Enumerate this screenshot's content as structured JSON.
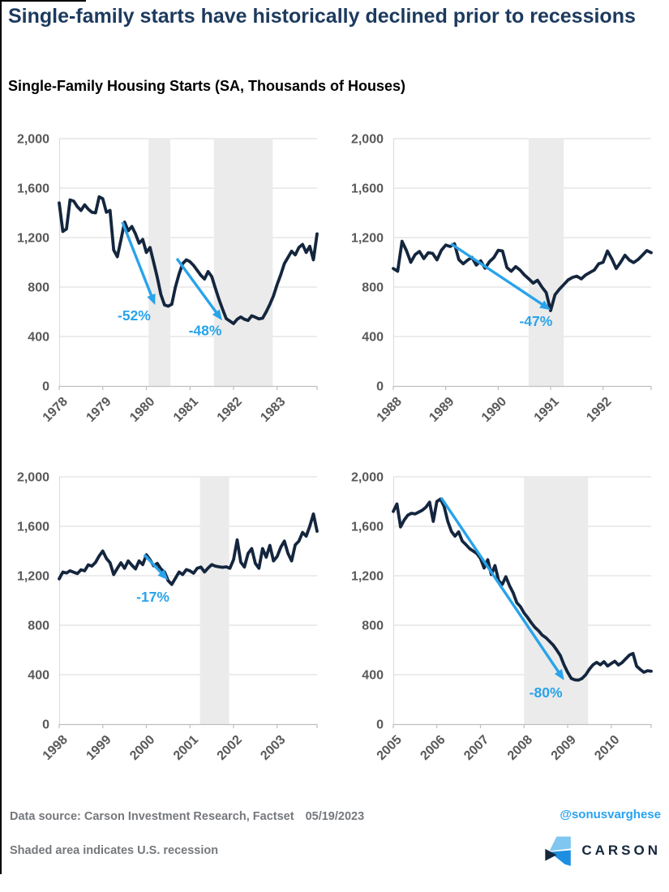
{
  "header": {
    "title": "Single-family starts have historically declined prior to recessions",
    "subtitle": "Single-Family Housing Starts (SA, Thousands of Houses)"
  },
  "footer": {
    "source": "Data source: Carson Investment Research, Factset",
    "date": "05/19/2023",
    "note": "Shaded area indicates U.S. recession",
    "handle": "@sonusvarghese",
    "brand": "CARSON"
  },
  "colors": {
    "line_navy": "#14263e",
    "accent_blue": "#29a3ea",
    "title_navy": "#1c3a5e",
    "label_gray": "#595959",
    "grid_gray": "#d9d9d9",
    "axis_gray": "#bfbfbf",
    "band_gray": "#ebebeb",
    "handle_blue": "#29a2f2",
    "logo_light_blue": "#7fc6f0",
    "logo_mid_blue": "#1e8fe0",
    "logo_navy": "#16273c"
  },
  "chart_data": [
    {
      "type": "line",
      "title": "Single-Family Housing Starts 1978-1983",
      "ylabel": "Thousands of Houses (SA)",
      "ylim": [
        0,
        2000
      ],
      "yticks": [
        0,
        400,
        800,
        1200,
        1600,
        2000
      ],
      "xticks": [
        1978,
        1979,
        1980,
        1981,
        1982,
        1983
      ],
      "x_start": 1978,
      "points_per_year": 12,
      "values": [
        1480,
        1250,
        1270,
        1505,
        1495,
        1450,
        1420,
        1465,
        1430,
        1405,
        1400,
        1530,
        1515,
        1405,
        1420,
        1100,
        1045,
        1180,
        1325,
        1255,
        1290,
        1230,
        1155,
        1185,
        1080,
        1120,
        1000,
        880,
        740,
        655,
        645,
        660,
        800,
        905,
        990,
        1020,
        1005,
        975,
        935,
        895,
        865,
        925,
        885,
        790,
        700,
        620,
        545,
        525,
        505,
        540,
        558,
        540,
        530,
        568,
        556,
        542,
        548,
        600,
        660,
        730,
        820,
        900,
        990,
        1040,
        1090,
        1060,
        1120,
        1145,
        1080,
        1130,
        1020,
        1230
      ],
      "recession_bands": [
        {
          "from": 1980.05,
          "to": 1980.55
        },
        {
          "from": 1981.55,
          "to": 1982.9
        }
      ],
      "annotations": [
        {
          "label": "-52%",
          "x1": 1979.45,
          "y1": 1325,
          "x2": 1980.2,
          "y2": 655,
          "lx": 1979.72,
          "ly": 570
        },
        {
          "label": "-48%",
          "x1": 1980.7,
          "y1": 1030,
          "x2": 1981.74,
          "y2": 530,
          "lx": 1981.35,
          "ly": 450
        }
      ]
    },
    {
      "type": "line",
      "title": "Single-Family Housing Starts 1988-1992",
      "ylabel": "Thousands of Houses (SA)",
      "ylim": [
        0,
        2000
      ],
      "yticks": [
        0,
        400,
        800,
        1200,
        1600,
        2000
      ],
      "xticks": [
        1988,
        1989,
        1990,
        1991,
        1992
      ],
      "x_start": 1988,
      "points_per_year": 12,
      "values": [
        950,
        928,
        1170,
        1095,
        1000,
        1062,
        1088,
        1030,
        1078,
        1072,
        1020,
        1098,
        1140,
        1128,
        1150,
        1022,
        988,
        1018,
        1040,
        978,
        1012,
        952,
        1005,
        1038,
        1098,
        1092,
        958,
        928,
        965,
        938,
        898,
        866,
        832,
        855,
        800,
        755,
        610,
        738,
        782,
        820,
        858,
        878,
        888,
        866,
        898,
        918,
        938,
        988,
        1000,
        1092,
        1028,
        950,
        1000,
        1058,
        1018,
        998,
        1022,
        1058,
        1095,
        1078
      ],
      "recession_bands": [
        {
          "from": 1990.58,
          "to": 1991.25
        }
      ],
      "annotations": [
        {
          "label": "-47%",
          "x1": 1989.1,
          "y1": 1150,
          "x2": 1991.0,
          "y2": 615,
          "lx": 1990.72,
          "ly": 525
        }
      ]
    },
    {
      "type": "line",
      "title": "Single-Family Housing Starts 1998-2003",
      "ylabel": "Thousands of Houses (SA)",
      "ylim": [
        0,
        2000
      ],
      "yticks": [
        0,
        400,
        800,
        1200,
        1600,
        2000
      ],
      "xticks": [
        1998,
        1999,
        2000,
        2001,
        2002,
        2003
      ],
      "x_start": 1998,
      "points_per_year": 12,
      "values": [
        1175,
        1230,
        1222,
        1240,
        1228,
        1218,
        1248,
        1240,
        1288,
        1278,
        1308,
        1360,
        1400,
        1340,
        1305,
        1210,
        1260,
        1305,
        1260,
        1320,
        1285,
        1255,
        1320,
        1290,
        1370,
        1330,
        1280,
        1300,
        1255,
        1230,
        1160,
        1130,
        1180,
        1230,
        1210,
        1250,
        1240,
        1220,
        1260,
        1270,
        1230,
        1262,
        1290,
        1278,
        1272,
        1268,
        1272,
        1260,
        1330,
        1490,
        1310,
        1270,
        1380,
        1420,
        1300,
        1260,
        1420,
        1350,
        1445,
        1320,
        1355,
        1430,
        1480,
        1380,
        1320,
        1450,
        1480,
        1550,
        1520,
        1600,
        1700,
        1560
      ],
      "recession_bands": [
        {
          "from": 2001.23,
          "to": 2001.9
        }
      ],
      "annotations": [
        {
          "label": "-17%",
          "x1": 1999.95,
          "y1": 1370,
          "x2": 2000.5,
          "y2": 1165,
          "lx": 2000.15,
          "ly": 1030
        }
      ]
    },
    {
      "type": "line",
      "title": "Single-Family Housing Starts 2005-2010",
      "ylabel": "Thousands of Houses (SA)",
      "ylim": [
        0,
        2000
      ],
      "yticks": [
        0,
        400,
        800,
        1200,
        1600,
        2000
      ],
      "xticks": [
        2005,
        2006,
        2007,
        2008,
        2009,
        2010
      ],
      "x_start": 2005,
      "points_per_year": 12,
      "values": [
        1720,
        1780,
        1595,
        1650,
        1690,
        1705,
        1700,
        1715,
        1730,
        1755,
        1795,
        1640,
        1800,
        1820,
        1760,
        1640,
        1558,
        1520,
        1555,
        1480,
        1452,
        1420,
        1400,
        1380,
        1340,
        1262,
        1330,
        1210,
        1282,
        1160,
        1130,
        1192,
        1120,
        1062,
        982,
        950,
        900,
        862,
        820,
        782,
        755,
        720,
        700,
        670,
        640,
        600,
        555,
        480,
        420,
        370,
        358,
        356,
        370,
        400,
        445,
        480,
        500,
        480,
        505,
        470,
        490,
        508,
        478,
        498,
        528,
        558,
        572,
        468,
        442,
        420,
        432,
        428
      ],
      "recession_bands": [
        {
          "from": 2008.0,
          "to": 2009.47
        }
      ],
      "annotations": [
        {
          "label": "-80%",
          "x1": 2006.1,
          "y1": 1830,
          "x2": 2008.92,
          "y2": 355,
          "lx": 2008.5,
          "ly": 255
        }
      ]
    }
  ]
}
